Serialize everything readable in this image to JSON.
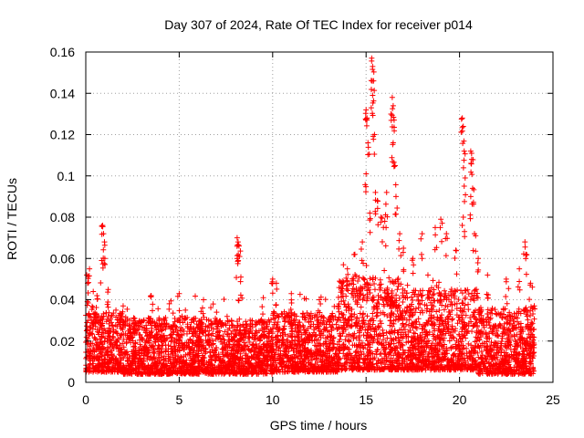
{
  "chart_data": {
    "type": "scatter",
    "title": "Day 307 of 2024, Rate Of TEC Index for receiver p014",
    "xlabel": "GPS time / hours",
    "ylabel": "ROTI / TECUs",
    "xlim": [
      0,
      25
    ],
    "ylim": [
      0,
      0.16
    ],
    "xticks": [
      0,
      5,
      10,
      15,
      20,
      25
    ],
    "xtick_labels": [
      "0",
      "5",
      "10",
      "15",
      "20",
      "25"
    ],
    "yticks": [
      0,
      0.02,
      0.04,
      0.06,
      0.08,
      0.1,
      0.12,
      0.14,
      0.16
    ],
    "ytick_labels": [
      "0",
      "0.02",
      "0.04",
      "0.06",
      "0.08",
      "0.1",
      "0.12",
      "0.14",
      "0.16"
    ],
    "grid": true,
    "marker": "+",
    "marker_color": "#ff0000",
    "series": [
      {
        "name": "ROTI",
        "note": "dense band of ~0.005–0.035 TECU/s over 0–24 h; representative highlighted points listed",
        "points": [
          [
            0.05,
            0.052
          ],
          [
            0.1,
            0.048
          ],
          [
            0.2,
            0.055
          ],
          [
            0.4,
            0.044
          ],
          [
            0.6,
            0.042
          ],
          [
            0.9,
            0.076
          ],
          [
            0.95,
            0.072
          ],
          [
            1.0,
            0.068
          ],
          [
            0.85,
            0.059
          ],
          [
            1.2,
            0.045
          ],
          [
            2.0,
            0.037
          ],
          [
            3.5,
            0.042
          ],
          [
            5.0,
            0.043
          ],
          [
            6.3,
            0.04
          ],
          [
            7.0,
            0.034
          ],
          [
            8.1,
            0.07
          ],
          [
            8.15,
            0.068
          ],
          [
            8.2,
            0.066
          ],
          [
            8.1,
            0.06
          ],
          [
            8.3,
            0.051
          ],
          [
            9.5,
            0.041
          ],
          [
            10.0,
            0.05
          ],
          [
            10.2,
            0.048
          ],
          [
            11.0,
            0.043
          ],
          [
            12.5,
            0.04
          ],
          [
            13.7,
            0.048
          ],
          [
            14.0,
            0.055
          ],
          [
            14.4,
            0.062
          ],
          [
            14.8,
            0.068
          ],
          [
            15.0,
            0.132
          ],
          [
            15.05,
            0.128
          ],
          [
            15.1,
            0.116
          ],
          [
            15.0,
            0.101
          ],
          [
            15.2,
            0.082
          ],
          [
            15.3,
            0.157
          ],
          [
            15.35,
            0.153
          ],
          [
            15.4,
            0.146
          ],
          [
            15.35,
            0.139
          ],
          [
            15.45,
            0.12
          ],
          [
            15.5,
            0.092
          ],
          [
            15.6,
            0.088
          ],
          [
            15.8,
            0.08
          ],
          [
            16.0,
            0.078
          ],
          [
            16.1,
            0.092
          ],
          [
            16.4,
            0.138
          ],
          [
            16.45,
            0.134
          ],
          [
            16.5,
            0.127
          ],
          [
            16.45,
            0.116
          ],
          [
            16.55,
            0.105
          ],
          [
            16.6,
            0.09
          ],
          [
            16.8,
            0.072
          ],
          [
            17.0,
            0.065
          ],
          [
            17.5,
            0.06
          ],
          [
            18.0,
            0.072
          ],
          [
            18.7,
            0.075
          ],
          [
            19.0,
            0.079
          ],
          [
            19.3,
            0.072
          ],
          [
            19.8,
            0.064
          ],
          [
            20.15,
            0.128
          ],
          [
            20.2,
            0.124
          ],
          [
            20.25,
            0.112
          ],
          [
            20.3,
            0.099
          ],
          [
            20.2,
            0.08
          ],
          [
            20.6,
            0.112
          ],
          [
            20.65,
            0.108
          ],
          [
            20.7,
            0.094
          ],
          [
            20.6,
            0.09
          ],
          [
            20.8,
            0.072
          ],
          [
            21.0,
            0.06
          ],
          [
            21.5,
            0.052
          ],
          [
            22.5,
            0.05
          ],
          [
            23.2,
            0.055
          ],
          [
            23.5,
            0.068
          ],
          [
            23.55,
            0.062
          ],
          [
            23.8,
            0.048
          ],
          [
            24.0,
            0.037
          ]
        ],
        "baseline_band": {
          "segments": [
            {
              "x_from": 0,
              "x_to": 2,
              "y_low": 0.005,
              "y_high": 0.03
            },
            {
              "x_from": 2,
              "x_to": 6,
              "y_low": 0.004,
              "y_high": 0.028
            },
            {
              "x_from": 6,
              "x_to": 10,
              "y_low": 0.004,
              "y_high": 0.027
            },
            {
              "x_from": 10,
              "x_to": 13.5,
              "y_low": 0.005,
              "y_high": 0.03
            },
            {
              "x_from": 13.5,
              "x_to": 17,
              "y_low": 0.006,
              "y_high": 0.045
            },
            {
              "x_from": 17,
              "x_to": 21,
              "y_low": 0.006,
              "y_high": 0.04
            },
            {
              "x_from": 21,
              "x_to": 24,
              "y_low": 0.004,
              "y_high": 0.032
            }
          ]
        }
      }
    ]
  }
}
